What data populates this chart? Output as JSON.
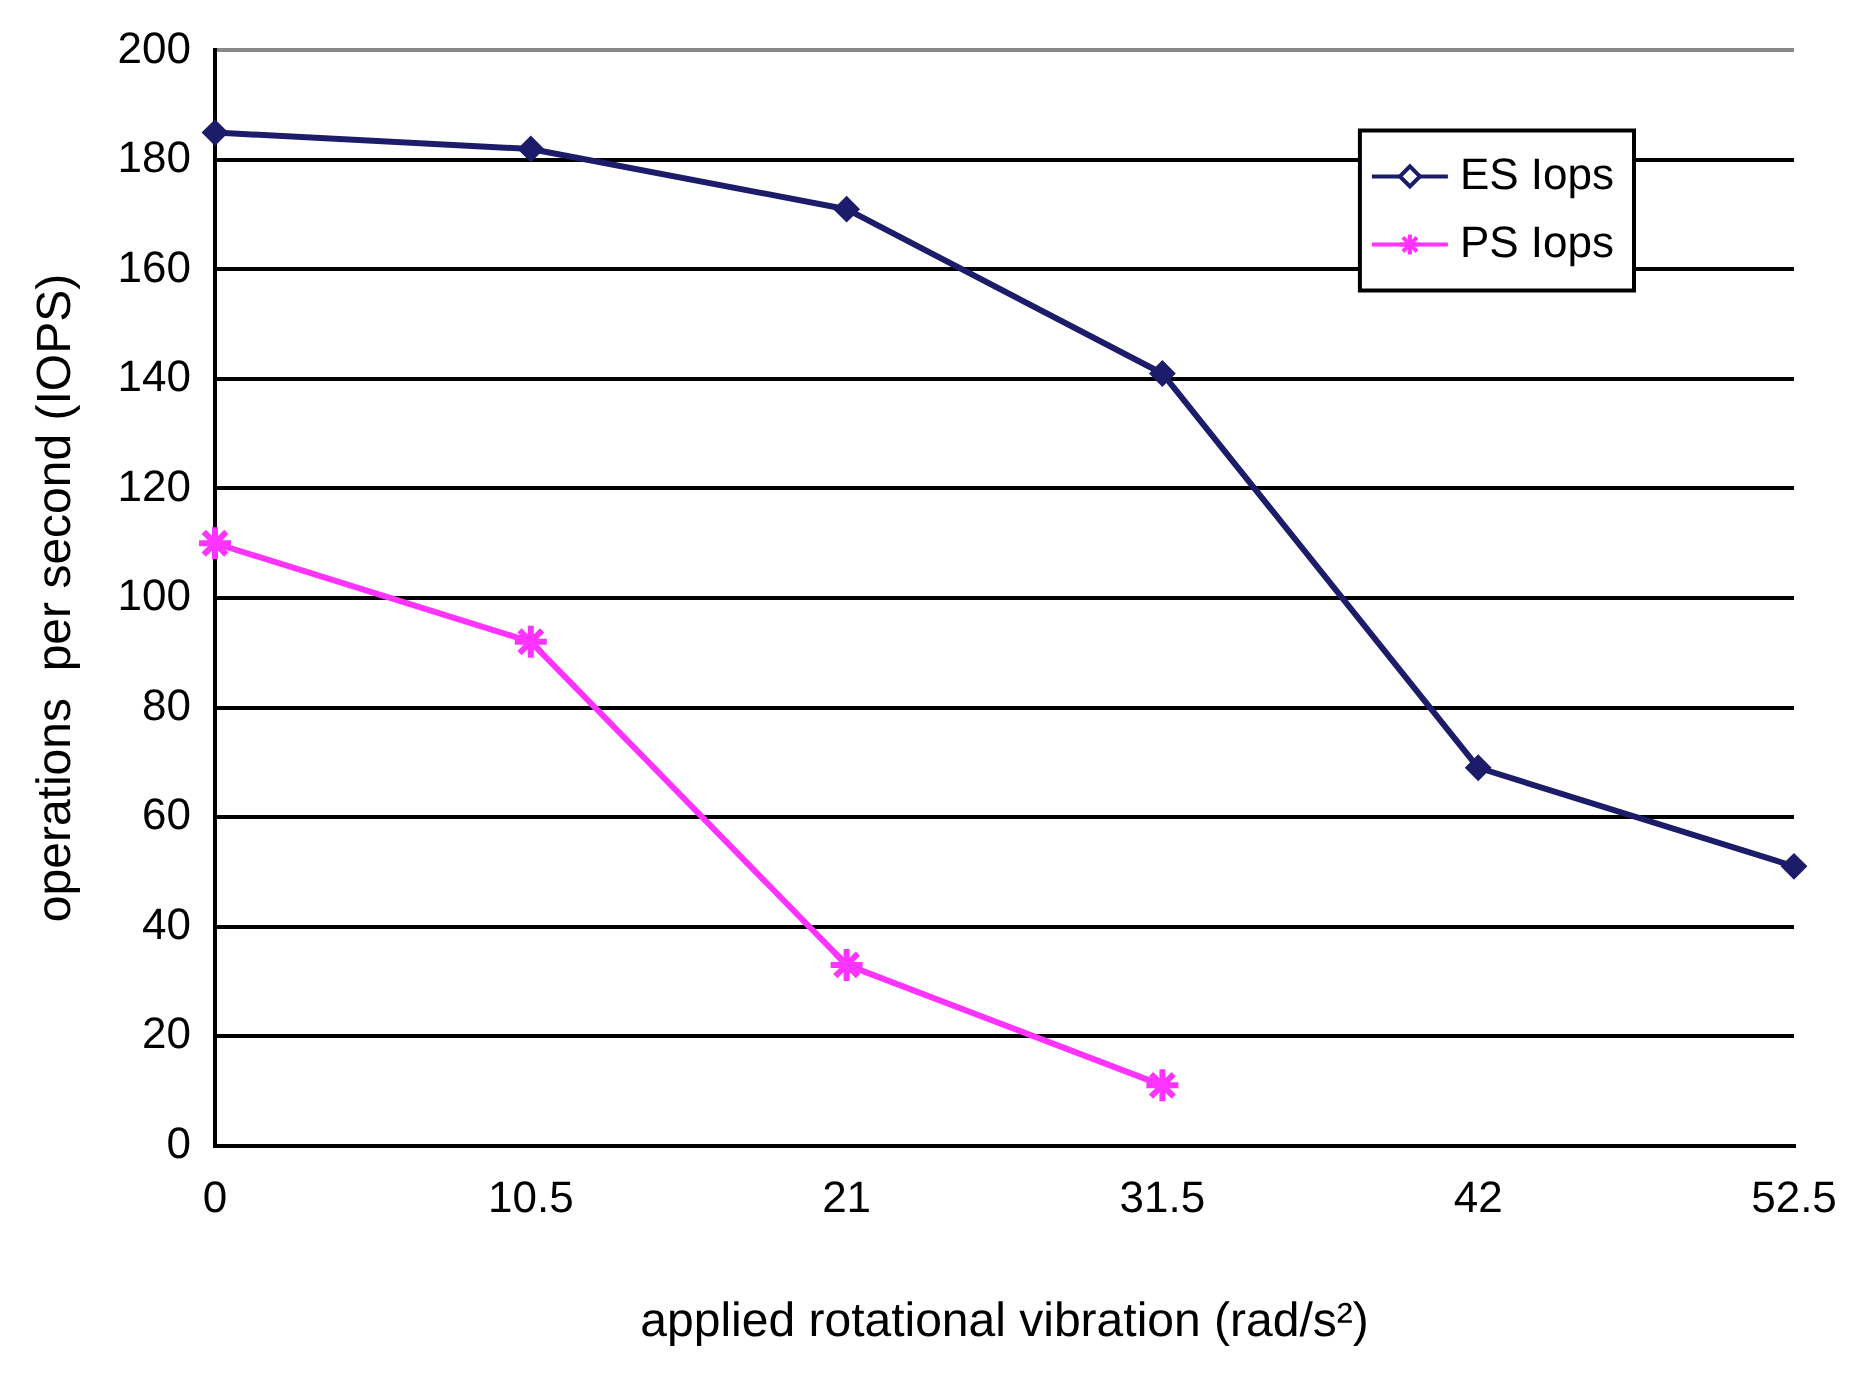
{
  "chart_data": {
    "type": "line",
    "xlabel": "applied rotational vibration (rad/s²)",
    "ylabel": "operations  per second (IOPS)",
    "x": [
      0,
      10.5,
      21,
      31.5,
      42,
      52.5
    ],
    "series": [
      {
        "name": "ES Iops",
        "color": "#1c1c6b",
        "marker": "diamond",
        "values": [
          185,
          182,
          171,
          141,
          69,
          51
        ]
      },
      {
        "name": "PS Iops",
        "color": "#ff33ff",
        "marker": "cross",
        "values": [
          110,
          92,
          33,
          11,
          null,
          null
        ]
      }
    ],
    "xlim": [
      0,
      52.5
    ],
    "xticks": [
      0,
      10.5,
      21,
      31.5,
      42,
      52.5
    ],
    "ylim": [
      0,
      200
    ],
    "yticks": [
      0,
      20,
      40,
      60,
      80,
      100,
      120,
      140,
      160,
      180,
      200
    ],
    "grid": "y",
    "legend": "top right",
    "line_style": "solid"
  }
}
